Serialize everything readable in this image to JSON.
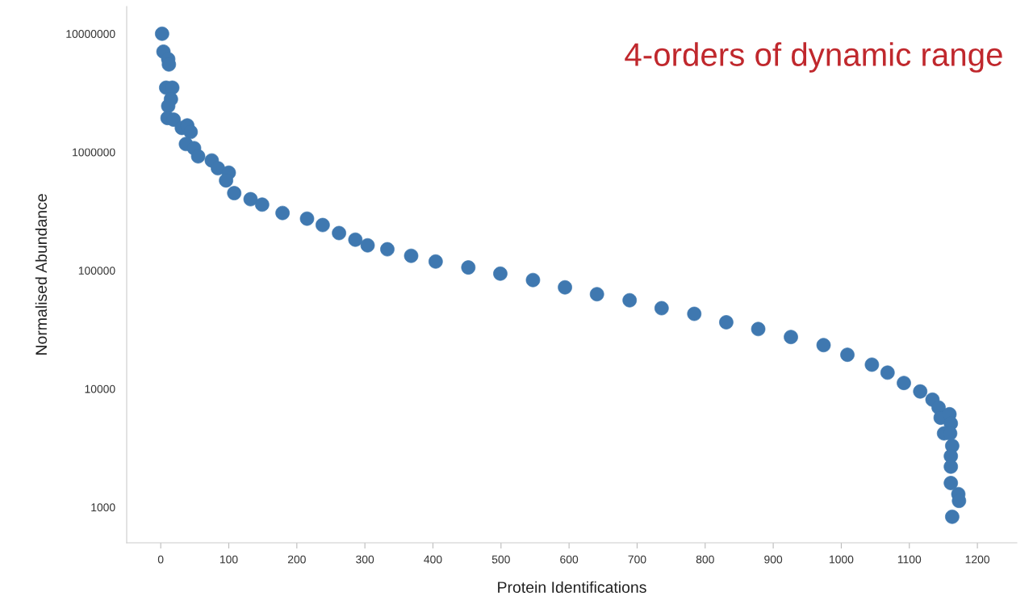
{
  "chart_data": {
    "type": "scatter",
    "xlabel": "Protein Identifications",
    "ylabel": "Normalised Abundance",
    "annotations": [
      "4-orders of dynamic range"
    ],
    "log": "y",
    "grid": false,
    "marker": "circle",
    "xlim": [
      -50,
      1258
    ],
    "xticks": [
      0,
      100,
      200,
      300,
      400,
      500,
      600,
      700,
      800,
      900,
      1000,
      1100,
      1200
    ],
    "ylim": [
      500,
      17000000
    ],
    "yticks": [
      1000,
      10000,
      100000,
      1000000,
      10000000
    ],
    "series": [
      {
        "color": "#3f78b0",
        "x": [
          2,
          4,
          11,
          12,
          8,
          17,
          15,
          11,
          10,
          19,
          31,
          39,
          44,
          37,
          49,
          55,
          75,
          84,
          100,
          96,
          108,
          132,
          149,
          179,
          215,
          238,
          262,
          286,
          304,
          333,
          368,
          404,
          452,
          499,
          547,
          594,
          641,
          689,
          736,
          784,
          831,
          878,
          926,
          974,
          1009,
          1045,
          1068,
          1092,
          1116,
          1134,
          1143,
          1146,
          1159,
          1161,
          1151,
          1160,
          1163,
          1161,
          1161,
          1161,
          1172,
          1173,
          1163
        ],
        "values": [
          10000000,
          7060000,
          6100000,
          5500000,
          3500000,
          3500000,
          2800000,
          2450000,
          1940000,
          1880000,
          1600000,
          1680000,
          1480000,
          1170000,
          1080000,
          920000,
          850000,
          730000,
          670000,
          576000,
          450000,
          400000,
          360000,
          306000,
          274000,
          242000,
          207000,
          182000,
          163000,
          151000,
          133000,
          119000,
          106000,
          94000,
          83000,
          72000,
          63000,
          56000,
          48000,
          43000,
          36500,
          32000,
          27400,
          23400,
          19400,
          16000,
          13700,
          11200,
          9500,
          8100,
          6950,
          5700,
          6100,
          5100,
          4200,
          4200,
          3300,
          2700,
          2200,
          1600,
          1290,
          1130,
          830
        ]
      }
    ]
  }
}
